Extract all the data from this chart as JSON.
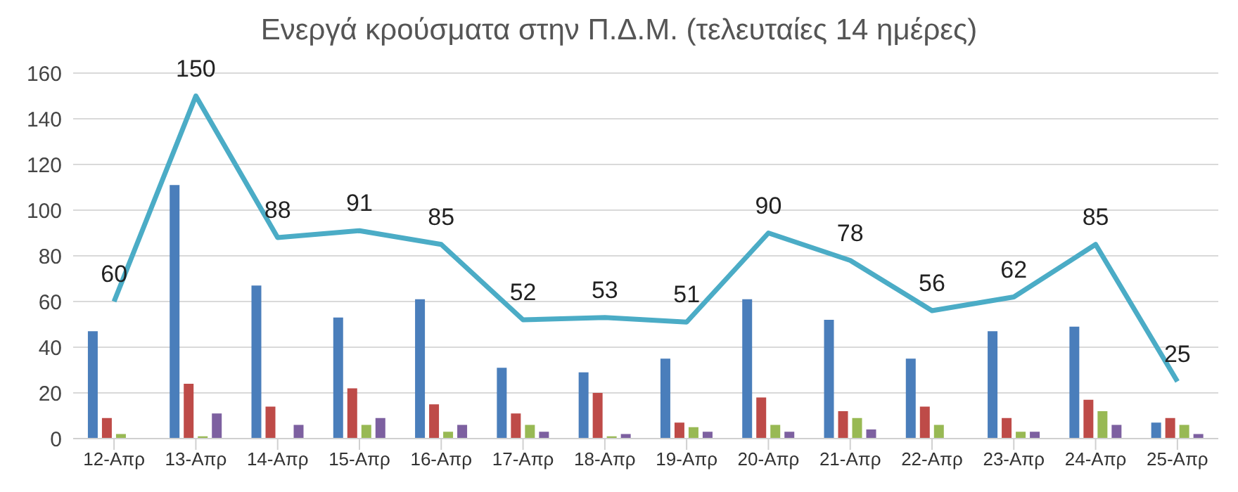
{
  "chart_data": {
    "type": "bar",
    "title": "Ενεργά κρούσματα στην Π.Δ.Μ. (τελευταίες 14 ημέρες)",
    "categories": [
      "12-Απρ",
      "13-Απρ",
      "14-Απρ",
      "15-Απρ",
      "16-Απρ",
      "17-Απρ",
      "18-Απρ",
      "19-Απρ",
      "20-Απρ",
      "21-Απρ",
      "22-Απρ",
      "23-Απρ",
      "24-Απρ",
      "25-Απρ"
    ],
    "series": [
      {
        "color": "#4a7ebb",
        "values": [
          47,
          111,
          67,
          53,
          61,
          31,
          29,
          35,
          61,
          52,
          35,
          47,
          49,
          7
        ]
      },
      {
        "color": "#be4b48",
        "values": [
          9,
          24,
          14,
          22,
          15,
          11,
          20,
          7,
          18,
          12,
          14,
          9,
          17,
          9
        ]
      },
      {
        "color": "#98b954",
        "values": [
          2,
          1,
          0,
          6,
          3,
          6,
          1,
          5,
          6,
          9,
          6,
          3,
          12,
          6
        ]
      },
      {
        "color": "#7d60a0",
        "values": [
          0,
          11,
          6,
          9,
          6,
          3,
          2,
          3,
          3,
          4,
          0,
          3,
          6,
          2
        ]
      },
      {
        "type": "line",
        "color": "#4bacc6",
        "values": [
          60,
          150,
          88,
          91,
          85,
          52,
          53,
          51,
          90,
          78,
          56,
          62,
          85,
          25
        ],
        "value_labels": [
          "60",
          "150",
          "88",
          "91",
          "85",
          "52",
          "53",
          "51",
          "90",
          "78",
          "56",
          "62",
          "85",
          "25"
        ]
      }
    ],
    "ylim": [
      0,
      160
    ],
    "yticks": [
      0,
      20,
      40,
      60,
      80,
      100,
      120,
      140,
      160
    ],
    "grid": "y",
    "legend": false,
    "marker": "none"
  }
}
